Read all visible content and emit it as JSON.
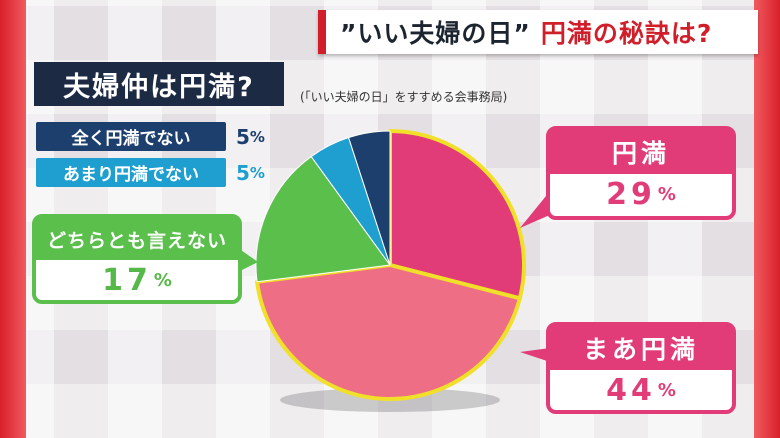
{
  "headline": {
    "part1": "”いい夫婦の日”",
    "part2": "円満の秘訣は?"
  },
  "question": "夫婦仲は円満?",
  "source": "(「いい夫婦の日」をすすめる会事務局)",
  "chart_data": {
    "type": "pie",
    "slices": [
      {
        "label": "円満",
        "value": 29,
        "display": "29",
        "color": "#e23c78"
      },
      {
        "label": "まあ円満",
        "value": 44,
        "display": "44",
        "color": "#ee6f85"
      },
      {
        "label": "どちらとも言えない",
        "value": 17,
        "display": "17",
        "color": "#5bbf4c"
      },
      {
        "label": "あまり円満でない",
        "value": 5,
        "display": "5",
        "color": "#1e9fd0"
      },
      {
        "label": "全く円満でない",
        "value": 5,
        "display": "5",
        "color": "#1d3f6e"
      }
    ],
    "unit": "%",
    "outline_color": "#f0e02a"
  }
}
